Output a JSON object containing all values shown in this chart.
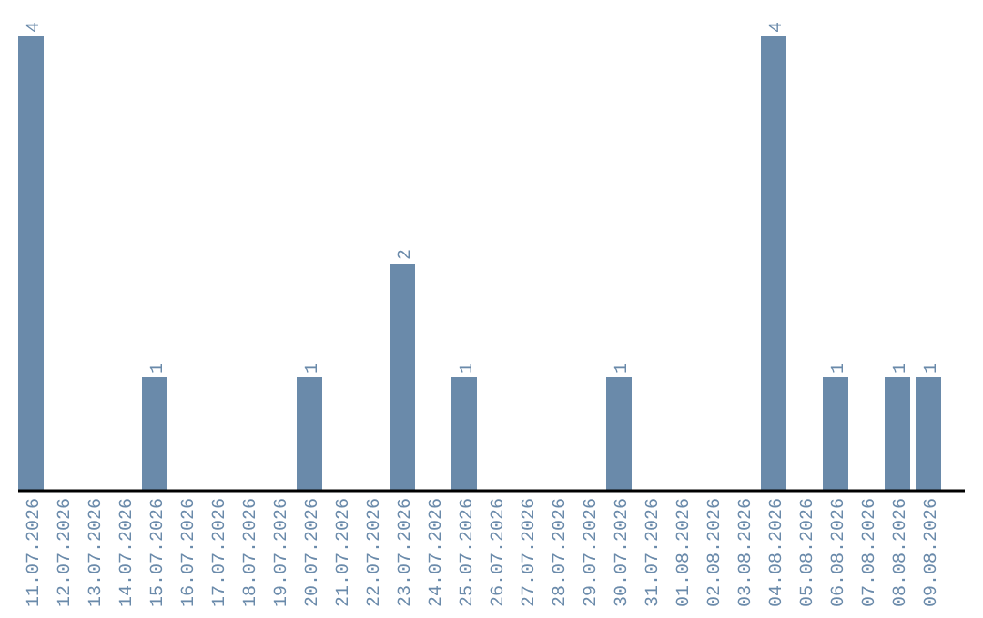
{
  "chart_data": {
    "type": "bar",
    "categories": [
      "11.07.2026",
      "12.07.2026",
      "13.07.2026",
      "14.07.2026",
      "15.07.2026",
      "16.07.2026",
      "17.07.2026",
      "18.07.2026",
      "19.07.2026",
      "20.07.2026",
      "21.07.2026",
      "22.07.2026",
      "23.07.2026",
      "24.07.2026",
      "25.07.2026",
      "26.07.2026",
      "27.07.2026",
      "28.07.2026",
      "29.07.2026",
      "30.07.2026",
      "31.07.2026",
      "01.08.2026",
      "02.08.2026",
      "03.08.2026",
      "04.08.2026",
      "05.08.2026",
      "06.08.2026",
      "07.08.2026",
      "08.08.2026",
      "09.08.2026"
    ],
    "values": [
      4,
      0,
      0,
      0,
      1,
      0,
      0,
      0,
      0,
      1,
      0,
      0,
      2,
      0,
      1,
      0,
      0,
      0,
      0,
      1,
      0,
      0,
      0,
      0,
      4,
      0,
      1,
      0,
      1,
      1
    ],
    "value_labels": [
      "4",
      null,
      null,
      null,
      "1",
      null,
      null,
      null,
      null,
      "1",
      null,
      null,
      "2",
      null,
      "1",
      null,
      null,
      null,
      null,
      "1",
      null,
      null,
      null,
      null,
      "4",
      null,
      "1",
      null,
      "1",
      "1"
    ],
    "color": "#6a8aaa"
  }
}
